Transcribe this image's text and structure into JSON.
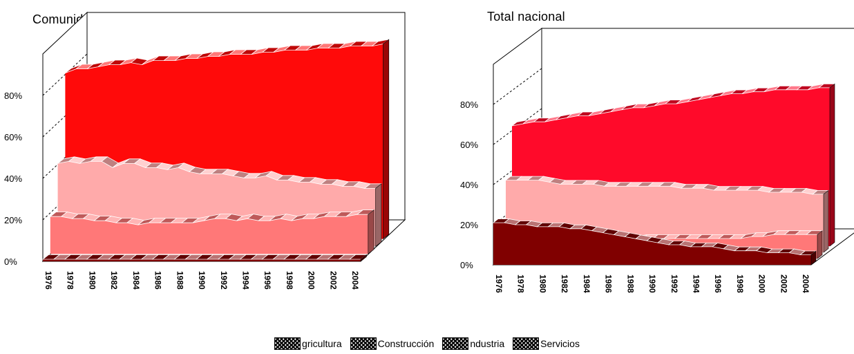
{
  "legend": {
    "items": [
      {
        "label": "gricultura",
        "color": "#800000"
      },
      {
        "label": "Construcción",
        "color": "#ff7878"
      },
      {
        "label": "ndustria",
        "color": "#ffaaaa"
      },
      {
        "label": "Servicios",
        "color": "#ff0a0a"
      }
    ]
  },
  "chart_data": [
    {
      "type": "area",
      "title": "Comunidad de Madrid",
      "y_ticks": [
        "0%",
        "20%",
        "40%",
        "60%",
        "80%"
      ],
      "x_tick_labels": [
        "1976",
        "1978",
        "1980",
        "1982",
        "1984",
        "1986",
        "1988",
        "1990",
        "1992",
        "1994",
        "1996",
        "1998",
        "2000",
        "2002",
        "2004"
      ],
      "x": [
        1976,
        1977,
        1978,
        1979,
        1980,
        1981,
        1982,
        1983,
        1984,
        1985,
        1986,
        1987,
        1988,
        1989,
        1990,
        1991,
        1992,
        1993,
        1994,
        1995,
        1996,
        1997,
        1998,
        1999,
        2000,
        2001,
        2002,
        2003,
        2004,
        2005
      ],
      "ylim": [
        0,
        1
      ],
      "series": [
        {
          "name": "Agricultura",
          "color": "#800000",
          "values": [
            0.01,
            0.01,
            0.01,
            0.01,
            0.01,
            0.01,
            0.01,
            0.01,
            0.01,
            0.01,
            0.01,
            0.01,
            0.01,
            0.01,
            0.01,
            0.01,
            0.01,
            0.01,
            0.01,
            0.01,
            0.01,
            0.01,
            0.01,
            0.01,
            0.01,
            0.01,
            0.01,
            0.01,
            0.01,
            0.01
          ]
        },
        {
          "name": "Construcción",
          "color": "#ff7878",
          "values": [
            0.18,
            0.18,
            0.17,
            0.17,
            0.16,
            0.16,
            0.15,
            0.15,
            0.14,
            0.15,
            0.15,
            0.15,
            0.15,
            0.15,
            0.16,
            0.17,
            0.17,
            0.16,
            0.17,
            0.16,
            0.16,
            0.17,
            0.16,
            0.17,
            0.17,
            0.18,
            0.18,
            0.18,
            0.19,
            0.19
          ]
        },
        {
          "name": "Industria",
          "color": "#ffaaaa",
          "values": [
            0.4,
            0.41,
            0.4,
            0.41,
            0.41,
            0.38,
            0.4,
            0.4,
            0.38,
            0.38,
            0.37,
            0.38,
            0.36,
            0.35,
            0.35,
            0.35,
            0.34,
            0.33,
            0.33,
            0.34,
            0.32,
            0.32,
            0.31,
            0.31,
            0.3,
            0.3,
            0.29,
            0.29,
            0.28,
            0.28
          ]
        },
        {
          "name": "Servicios",
          "color": "#ff0a0a",
          "values": [
            0.8,
            0.82,
            0.82,
            0.83,
            0.84,
            0.84,
            0.85,
            0.84,
            0.86,
            0.86,
            0.86,
            0.87,
            0.87,
            0.88,
            0.88,
            0.89,
            0.89,
            0.89,
            0.9,
            0.9,
            0.91,
            0.91,
            0.91,
            0.92,
            0.92,
            0.92,
            0.93,
            0.93,
            0.93,
            0.94
          ]
        }
      ]
    },
    {
      "type": "area",
      "title": "Total nacional",
      "y_ticks": [
        "0%",
        "20%",
        "40%",
        "60%",
        "80%"
      ],
      "x_tick_labels": [
        "1976",
        "1978",
        "1980",
        "1982",
        "1984",
        "1986",
        "1988",
        "1990",
        "1992",
        "1994",
        "1996",
        "1998",
        "2000",
        "2002",
        "2004"
      ],
      "x": [
        1976,
        1977,
        1978,
        1979,
        1980,
        1981,
        1982,
        1983,
        1984,
        1985,
        1986,
        1987,
        1988,
        1989,
        1990,
        1991,
        1992,
        1993,
        1994,
        1995,
        1996,
        1997,
        1998,
        1999,
        2000,
        2001,
        2002,
        2003,
        2004,
        2005
      ],
      "ylim": [
        0,
        1
      ],
      "series": [
        {
          "name": "Agricultura",
          "color": "#800000",
          "values": [
            0.21,
            0.21,
            0.2,
            0.2,
            0.19,
            0.19,
            0.19,
            0.18,
            0.18,
            0.17,
            0.16,
            0.15,
            0.14,
            0.13,
            0.12,
            0.11,
            0.1,
            0.1,
            0.09,
            0.09,
            0.09,
            0.08,
            0.07,
            0.07,
            0.07,
            0.06,
            0.06,
            0.06,
            0.05,
            0.05
          ]
        },
        {
          "name": "Construcción",
          "color": "#ff7878",
          "values": [
            0.09,
            0.09,
            0.09,
            0.09,
            0.09,
            0.08,
            0.08,
            0.08,
            0.08,
            0.08,
            0.08,
            0.09,
            0.09,
            0.1,
            0.1,
            0.1,
            0.1,
            0.1,
            0.1,
            0.1,
            0.1,
            0.1,
            0.1,
            0.11,
            0.11,
            0.12,
            0.12,
            0.12,
            0.12,
            0.12
          ]
        },
        {
          "name": "Industria",
          "color": "#ffaaaa",
          "values": [
            0.36,
            0.36,
            0.36,
            0.36,
            0.35,
            0.34,
            0.34,
            0.34,
            0.34,
            0.33,
            0.33,
            0.33,
            0.33,
            0.33,
            0.33,
            0.33,
            0.32,
            0.32,
            0.32,
            0.31,
            0.31,
            0.31,
            0.31,
            0.31,
            0.3,
            0.3,
            0.3,
            0.3,
            0.29,
            0.29
          ]
        },
        {
          "name": "Servicios",
          "color": "#ff0a2a",
          "values": [
            0.6,
            0.61,
            0.62,
            0.62,
            0.63,
            0.64,
            0.65,
            0.65,
            0.66,
            0.67,
            0.68,
            0.69,
            0.69,
            0.7,
            0.71,
            0.71,
            0.72,
            0.73,
            0.74,
            0.75,
            0.76,
            0.76,
            0.77,
            0.77,
            0.78,
            0.78,
            0.78,
            0.78,
            0.79,
            0.79
          ]
        }
      ]
    }
  ]
}
